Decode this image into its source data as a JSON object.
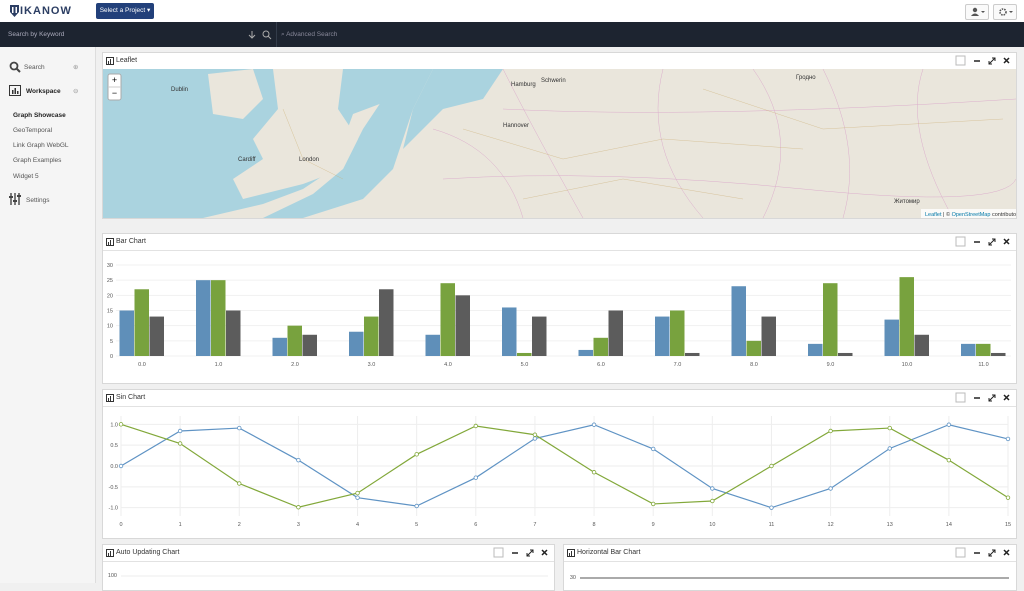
{
  "nav": {
    "logo": "IKANOW",
    "project_button": "Select a Project ▾"
  },
  "search": {
    "placeholder": "Search by Keyword",
    "advanced": "Advanced Search"
  },
  "sidebar": {
    "search": "Search",
    "workspace": "Workspace",
    "workspace_items": [
      "Graph Showcase",
      "GeoTemporal",
      "Link Graph WebGL",
      "Graph Examples",
      "Widget 5"
    ],
    "settings": "Settings"
  },
  "map": {
    "title": "Leaflet",
    "zoom_in": "+",
    "zoom_out": "−",
    "labels": [
      "Dublin",
      "Cardiff",
      "London",
      "Hamburg",
      "Schwerin",
      "Hannover",
      "Гродно",
      "Житомир"
    ],
    "attribution_leaflet": "Leaflet",
    "attribution_osm": "OpenStreetMap",
    "attribution_rest": "contributors"
  },
  "chart_data": [
    {
      "type": "bar",
      "title": "Bar Chart",
      "categories": [
        "0.0",
        "1.0",
        "2.0",
        "3.0",
        "4.0",
        "5.0",
        "6.0",
        "7.0",
        "8.0",
        "9.0",
        "10.0",
        "11.0"
      ],
      "series": [
        {
          "color": "#5f8fb9",
          "values": [
            15,
            25,
            6,
            8,
            7,
            16,
            2,
            13,
            23,
            4,
            12,
            4
          ]
        },
        {
          "color": "#78a23e",
          "values": [
            22,
            25,
            10,
            13,
            24,
            1,
            6,
            15,
            5,
            24,
            26,
            4
          ]
        },
        {
          "color": "#5c5c5c",
          "values": [
            13,
            15,
            7,
            22,
            20,
            13,
            15,
            1,
            13,
            1,
            7,
            1
          ]
        }
      ],
      "ylim": [
        0,
        30
      ],
      "yticks": [
        0,
        5,
        10,
        15,
        20,
        25,
        30
      ],
      "grid": true
    },
    {
      "type": "line",
      "title": "Sin Chart",
      "x": [
        0,
        1,
        2,
        3,
        4,
        5,
        6,
        7,
        8,
        9,
        10,
        11,
        12,
        13,
        14,
        15
      ],
      "series": [
        {
          "color": "#5f93c4",
          "values": [
            0,
            0.84,
            0.91,
            0.14,
            -0.76,
            -0.96,
            -0.28,
            0.66,
            0.99,
            0.41,
            -0.54,
            -1.0,
            -0.54,
            0.42,
            0.99,
            0.65
          ]
        },
        {
          "color": "#82a83a",
          "values": [
            1.0,
            0.54,
            -0.42,
            -0.99,
            -0.65,
            0.28,
            0.96,
            0.75,
            -0.15,
            -0.91,
            -0.84,
            0.0,
            0.84,
            0.91,
            0.14,
            -0.76
          ]
        }
      ],
      "xlim": [
        0,
        15
      ],
      "xticks": [
        0,
        1,
        2,
        3,
        4,
        5,
        6,
        7,
        8,
        9,
        10,
        11,
        12,
        13,
        14,
        15
      ],
      "ylim": [
        -1.2,
        1.2
      ],
      "yticks": [
        {
          "value": -1,
          "label": "-1.0"
        },
        {
          "value": -0.5,
          "label": "-0.5"
        },
        {
          "value": 0,
          "label": "0.0"
        },
        {
          "value": 0.5,
          "label": "0.5"
        },
        {
          "value": 1,
          "label": "1.0"
        }
      ],
      "grid": true
    }
  ],
  "panels": [
    {
      "title": "Auto Updating Chart",
      "tick": 100
    },
    {
      "title": "Horizontal Bar Chart",
      "tick": 30
    }
  ]
}
